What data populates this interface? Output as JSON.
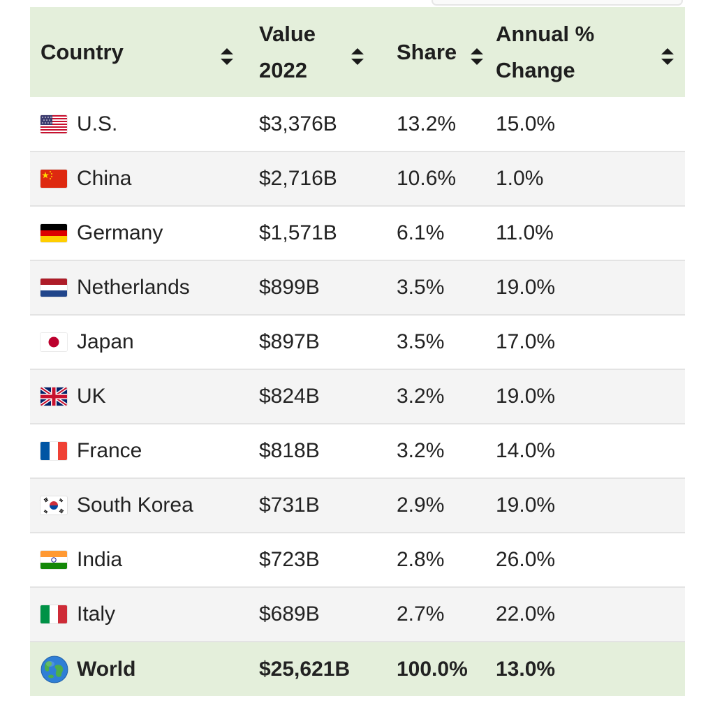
{
  "header": {
    "country": "Country",
    "value_line1": "Value",
    "value_line2": "2022",
    "share": "Share",
    "change_line1": "Annual %",
    "change_line2": "Change"
  },
  "rows": [
    {
      "country": "U.S.",
      "flag": "us-flag-icon",
      "value": "$3,376B",
      "share": "13.2%",
      "change": "15.0%"
    },
    {
      "country": "China",
      "flag": "china-flag-icon",
      "value": "$2,716B",
      "share": "10.6%",
      "change": "1.0%"
    },
    {
      "country": "Germany",
      "flag": "germany-flag-icon",
      "value": "$1,571B",
      "share": "6.1%",
      "change": "11.0%"
    },
    {
      "country": "Netherlands",
      "flag": "netherlands-flag-icon",
      "value": "$899B",
      "share": "3.5%",
      "change": "19.0%"
    },
    {
      "country": "Japan",
      "flag": "japan-flag-icon",
      "value": "$897B",
      "share": "3.5%",
      "change": "17.0%"
    },
    {
      "country": "UK",
      "flag": "uk-flag-icon",
      "value": "$824B",
      "share": "3.2%",
      "change": "19.0%"
    },
    {
      "country": "France",
      "flag": "france-flag-icon",
      "value": "$818B",
      "share": "3.2%",
      "change": "14.0%"
    },
    {
      "country": "South Korea",
      "flag": "south-korea-flag-icon",
      "value": "$731B",
      "share": "2.9%",
      "change": "19.0%"
    },
    {
      "country": "India",
      "flag": "india-flag-icon",
      "value": "$723B",
      "share": "2.8%",
      "change": "26.0%"
    },
    {
      "country": "Italy",
      "flag": "italy-flag-icon",
      "value": "$689B",
      "share": "2.7%",
      "change": "22.0%"
    }
  ],
  "total": {
    "country": "World",
    "icon": "globe-icon",
    "value": "$25,621B",
    "share": "100.0%",
    "change": "13.0%"
  },
  "colors": {
    "header_bg": "#e4efdb",
    "row_alt_bg": "#f4f4f4",
    "text": "#1f1f1f"
  }
}
